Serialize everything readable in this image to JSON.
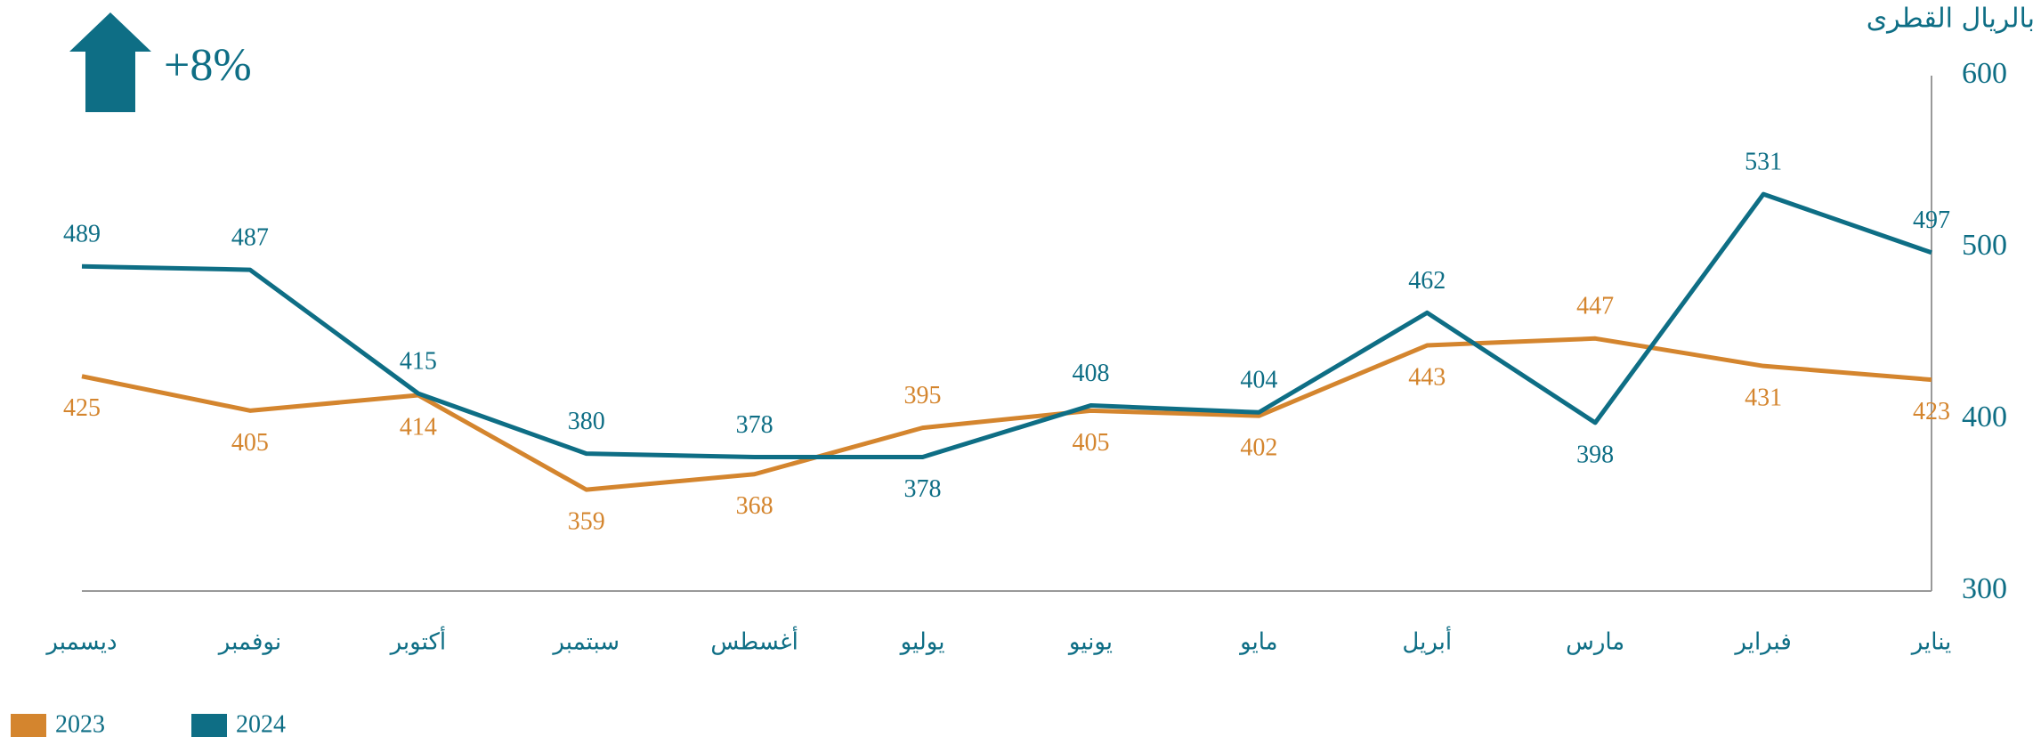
{
  "chart_data": {
    "type": "line",
    "annotation": "+8%",
    "y_label": "بالريال القطرى",
    "categories": [
      "يناير",
      "فبراير",
      "مارس",
      "أبريل",
      "مايو",
      "يونيو",
      "يوليو",
      "أغسطس",
      "سبتمبر",
      "أكتوبر",
      "نوفمبر",
      "ديسمبر"
    ],
    "series": [
      {
        "name": "2023",
        "color": "#d4852e",
        "values": [
          423,
          431,
          447,
          443,
          402,
          405,
          395,
          368,
          359,
          414,
          405,
          425
        ]
      },
      {
        "name": "2024",
        "color": "#0e6e85",
        "values": [
          497,
          531,
          398,
          462,
          404,
          408,
          378,
          378,
          380,
          415,
          487,
          489
        ]
      }
    ],
    "ylim": [
      300,
      600
    ],
    "yticks": [
      300,
      400,
      500,
      600
    ],
    "x_direction": "right-to-left",
    "y_axis_side": "right",
    "grid": false
  }
}
